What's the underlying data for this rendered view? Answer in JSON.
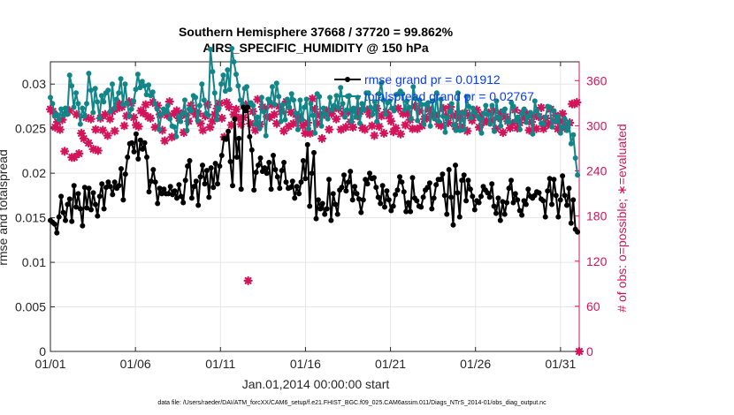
{
  "chart_data": {
    "type": "line",
    "title_line1": "Southern Hemisphere 37668 / 37720 = 99.862%",
    "title_line2": "AIRS_SPECIFIC_HUMIDITY @ 150 hPa",
    "xlabel": "Jan.01,2014 00:00:00 start",
    "ylabel": "rmse and totalspread",
    "ylabel_right": "# of obs: o=possible; ∗=evaluated",
    "x_ticks": [
      "01/01",
      "01/06",
      "01/11",
      "01/16",
      "01/21",
      "01/26",
      "01/31"
    ],
    "y_ticks": [
      "0",
      "0.005",
      "0.01",
      "0.015",
      "0.02",
      "0.025",
      "0.03"
    ],
    "y2_ticks": [
      "0",
      "60",
      "120",
      "180",
      "240",
      "300",
      "360"
    ],
    "xlim": [
      0,
      31.1
    ],
    "ylim": [
      0,
      0.0325
    ],
    "y2lim": [
      0,
      385
    ],
    "grid": true,
    "legend_position": "top-right",
    "footnote": "data file: /Users/raeder/DAI/ATM_forcXX/CAM6_setup/f.e21.FHIST_BGC.f09_025.CAM6assim.011/Diags_NTrS_2014-01/obs_diag_output.nc",
    "colors": {
      "rmse": "#000000",
      "spread": "#128589",
      "obs": "#d4145a",
      "legend_text": "#0a3cf0"
    },
    "series": [
      {
        "name": "rmse grand pr = 0.01912",
        "axis": "left",
        "values": [
          0.0147,
          0.0145,
          0.0143,
          0.0133,
          0.0151,
          0.0174,
          0.0156,
          0.0147,
          0.0165,
          0.0171,
          0.0146,
          0.0186,
          0.0162,
          0.0177,
          0.016,
          0.0141,
          0.0184,
          0.0161,
          0.0183,
          0.0159,
          0.0178,
          0.0165,
          0.0152,
          0.0174,
          0.0188,
          0.016,
          0.0184,
          0.019,
          0.0185,
          0.0176,
          0.019,
          0.0183,
          0.0186,
          0.0205,
          0.017,
          0.0199,
          0.0218,
          0.0233,
          0.0234,
          0.0224,
          0.0244,
          0.0216,
          0.0237,
          0.0227,
          0.0234,
          0.0218,
          0.0179,
          0.0191,
          0.0204,
          0.019,
          0.0166,
          0.0183,
          0.0177,
          0.0182,
          0.0177,
          0.0177,
          0.0185,
          0.0176,
          0.018,
          0.0172,
          0.0187,
          0.0174,
          0.0167,
          0.0192,
          0.0208,
          0.0214,
          0.0172,
          0.0185,
          0.0191,
          0.0164,
          0.0196,
          0.0209,
          0.0188,
          0.0203,
          0.0173,
          0.0206,
          0.0184,
          0.0211,
          0.0188,
          0.0208,
          0.022,
          0.0239,
          0.0238,
          0.0247,
          0.0213,
          0.0186,
          0.0261,
          0.0218,
          0.0239,
          0.0182,
          0.0274,
          0.027,
          0.0274,
          0.0241,
          0.0226,
          0.0181,
          0.0201,
          0.0209,
          0.0217,
          0.0202,
          0.0206,
          0.02,
          0.0212,
          0.0182,
          0.022,
          0.0204,
          0.0196,
          0.0183,
          0.0203,
          0.0212,
          0.019,
          0.0183,
          0.0184,
          0.0191,
          0.0172,
          0.0185,
          0.0177,
          0.019,
          0.0214,
          0.0194,
          0.0232,
          0.0163,
          0.02,
          0.0223,
          0.0149,
          0.017,
          0.016,
          0.0166,
          0.0154,
          0.016,
          0.0193,
          0.0147,
          0.0177,
          0.0165,
          0.0154,
          0.0181,
          0.0184,
          0.0198,
          0.018,
          0.019,
          0.0202,
          0.017,
          0.0185,
          0.0177,
          0.0171,
          0.0156,
          0.017,
          0.0193,
          0.0188,
          0.02,
          0.0194,
          0.0195,
          0.0184,
          0.0173,
          0.0166,
          0.0186,
          0.0162,
          0.018,
          0.017,
          0.0158,
          0.0163,
          0.0176,
          0.0181,
          0.0196,
          0.019,
          0.0179,
          0.0157,
          0.0167,
          0.0157,
          0.0195,
          0.0172,
          0.0169,
          0.0163,
          0.0162,
          0.0173,
          0.0181,
          0.0184,
          0.0189,
          0.016,
          0.0172,
          0.0187,
          0.0193,
          0.0193,
          0.0199,
          0.0175,
          0.0154,
          0.0204,
          0.0173,
          0.0142,
          0.0209,
          0.0178,
          0.0151,
          0.0192,
          0.0198,
          0.0169,
          0.0192,
          0.0182,
          0.0174,
          0.0159,
          0.0169,
          0.0167,
          0.0174,
          0.0185,
          0.0181,
          0.0178,
          0.0173,
          0.0188,
          0.0163,
          0.0155,
          0.0172,
          0.0147,
          0.0168,
          0.0154,
          0.0167,
          0.0183,
          0.0192,
          0.0167,
          0.0177,
          0.017,
          0.0158,
          0.0153,
          0.0169,
          0.0165,
          0.0182,
          0.0174,
          0.0172,
          0.0175,
          0.0179,
          0.0178,
          0.0171,
          0.0169,
          0.0151,
          0.018,
          0.0194,
          0.0165,
          0.0193,
          0.0175,
          0.0151,
          0.017,
          0.0197,
          0.0175,
          0.0164,
          0.0183,
          0.0144,
          0.017,
          0.0137,
          0.0134
        ]
      },
      {
        "name": "totalspread grand pr = 0.02767",
        "axis": "left",
        "values": [
          0.0285,
          0.0278,
          0.0264,
          0.0266,
          0.026,
          0.0272,
          0.0265,
          0.0273,
          0.0266,
          0.031,
          0.0298,
          0.0274,
          0.029,
          0.0278,
          0.0255,
          0.0273,
          0.0264,
          0.0278,
          0.0312,
          0.0293,
          0.0268,
          0.0295,
          0.028,
          0.0262,
          0.0287,
          0.028,
          0.029,
          0.0293,
          0.0269,
          0.03,
          0.0273,
          0.0283,
          0.029,
          0.0306,
          0.0277,
          0.03,
          0.0278,
          0.0264,
          0.0272,
          0.0281,
          0.0294,
          0.0311,
          0.0296,
          0.0303,
          0.0298,
          0.0288,
          0.0299,
          0.0287,
          0.0291,
          0.0278,
          0.0272,
          0.0249,
          0.0266,
          0.0272,
          0.0269,
          0.0276,
          0.0261,
          0.0253,
          0.0252,
          0.0241,
          0.0264,
          0.0258,
          0.0267,
          0.0282,
          0.0248,
          0.0272,
          0.027,
          0.0287,
          0.0285,
          0.0259,
          0.0276,
          0.03,
          0.0282,
          0.0267,
          0.0265,
          0.0339,
          0.0314,
          0.029,
          0.026,
          0.0273,
          0.03,
          0.031,
          0.0292,
          0.0316,
          0.0294,
          0.034,
          0.0325,
          0.0311,
          0.0298,
          0.0282,
          0.0277,
          0.0295,
          0.0297,
          0.0276,
          0.0279,
          0.0276,
          0.0255,
          0.0263,
          0.025,
          0.0285,
          0.0269,
          0.0242,
          0.0283,
          0.028,
          0.0297,
          0.0277,
          0.0301,
          0.0286,
          0.0258,
          0.0277,
          0.026,
          0.0283,
          0.0274,
          0.0289,
          0.0282,
          0.0267,
          0.0249,
          0.0282,
          0.026,
          0.0274,
          0.0283,
          0.025,
          0.0278,
          0.0265,
          0.0245,
          0.0289,
          0.0286,
          0.0253,
          0.0273,
          0.0266,
          0.0261,
          0.0285,
          0.0271,
          0.0276,
          0.0287,
          0.0273,
          0.0296,
          0.0278,
          0.0263,
          0.0271,
          0.0287,
          0.0258,
          0.0273,
          0.0263,
          0.0285,
          0.0256,
          0.0278,
          0.0271,
          0.029,
          0.029,
          0.0274,
          0.0266,
          0.028,
          0.0258,
          0.0289,
          0.0301,
          0.0282,
          0.0266,
          0.0279,
          0.0281,
          0.0273,
          0.027,
          0.0288,
          0.0289,
          0.0292,
          0.0289,
          0.0271,
          0.0281,
          0.0274,
          0.0261,
          0.0297,
          0.0284,
          0.0259,
          0.0282,
          0.0277,
          0.0255,
          0.0277,
          0.0279,
          0.0253,
          0.0281,
          0.0261,
          0.029,
          0.0258,
          0.0283,
          0.0264,
          0.0246,
          0.0262,
          0.0269,
          0.0278,
          0.0254,
          0.0248,
          0.029,
          0.0248,
          0.0268,
          0.0249,
          0.0286,
          0.0275,
          0.0262,
          0.0273,
          0.0268,
          0.0264,
          0.0261,
          0.0245,
          0.0267,
          0.0276,
          0.0266,
          0.0255,
          0.0276,
          0.0247,
          0.0281,
          0.0263,
          0.0253,
          0.027,
          0.0272,
          0.0258,
          0.0257,
          0.0279,
          0.0275,
          0.0259,
          0.0263,
          0.0249,
          0.0267,
          0.0272,
          0.0257,
          0.0264,
          0.0268,
          0.0244,
          0.0281,
          0.027,
          0.0265,
          0.0256,
          0.0255,
          0.0263,
          0.0275,
          0.0274,
          0.0252,
          0.027,
          0.0258,
          0.0264,
          0.0245,
          0.0252,
          0.0261,
          0.0248,
          0.0257,
          0.0233,
          0.0243,
          0.0217,
          0.0198
        ]
      },
      {
        "name": "obs evaluated",
        "axis": "right",
        "marker_only": true,
        "values": [
          322,
          319,
          298,
          305,
          295,
          308,
          266,
          318,
          320,
          258,
          258,
          315,
          263,
          290,
          283,
          311,
          277,
          309,
          269,
          295,
          267,
          310,
          294,
          315,
          287,
          309,
          319,
          293,
          323,
          329,
          325,
          300,
          313,
          332,
          330,
          311,
          301,
          299,
          320,
          317,
          328,
          312,
          310,
          331,
          298,
          327,
          315,
          294,
          280,
          314,
          332,
          285,
          316,
          320,
          310,
          316,
          291,
          314,
          306,
          327,
          320,
          315,
          316,
          303,
          294,
          313,
          328,
          298,
          306,
          315,
          323,
          330,
          310,
          285,
          331,
          325,
          301,
          315,
          322,
          310,
          302,
          311,
          328,
          94,
          303,
          319,
          294,
          335,
          302,
          325,
          323,
          312,
          311,
          328,
          315,
          303,
          326,
          319,
          293,
          332,
          299,
          318,
          303,
          315,
          312,
          308,
          300,
          290,
          304,
          290,
          336,
          322,
          303,
          314,
          283,
          315,
          320,
          295,
          316,
          323,
          309,
          323,
          295,
          316,
          298,
          318,
          305,
          298,
          320,
          313,
          319,
          297,
          295,
          321,
          315,
          300,
          287,
          323,
          299,
          313,
          290,
          318,
          313,
          306,
          292,
          297,
          323,
          289,
          316,
          301,
          316,
          308,
          296,
          326,
          296,
          320,
          300,
          309,
          310,
          322,
          316,
          314,
          313,
          302,
          300,
          323,
          313,
          304,
          325,
          313,
          299,
          316,
          310,
          297,
          317,
          293,
          313,
          307,
          314,
          321,
          298,
          314,
          305,
          306,
          317,
          307,
          320,
          296,
          311,
          317,
          291,
          312,
          306,
          297,
          303,
          321,
          297,
          304,
          317,
          311,
          316,
          294,
          305,
          313,
          296,
          312,
          324,
          296,
          310,
          302,
          322,
          306,
          314,
          296,
          306,
          316,
          297,
          301,
          304,
          329,
          329,
          331,
          0
        ]
      }
    ]
  }
}
